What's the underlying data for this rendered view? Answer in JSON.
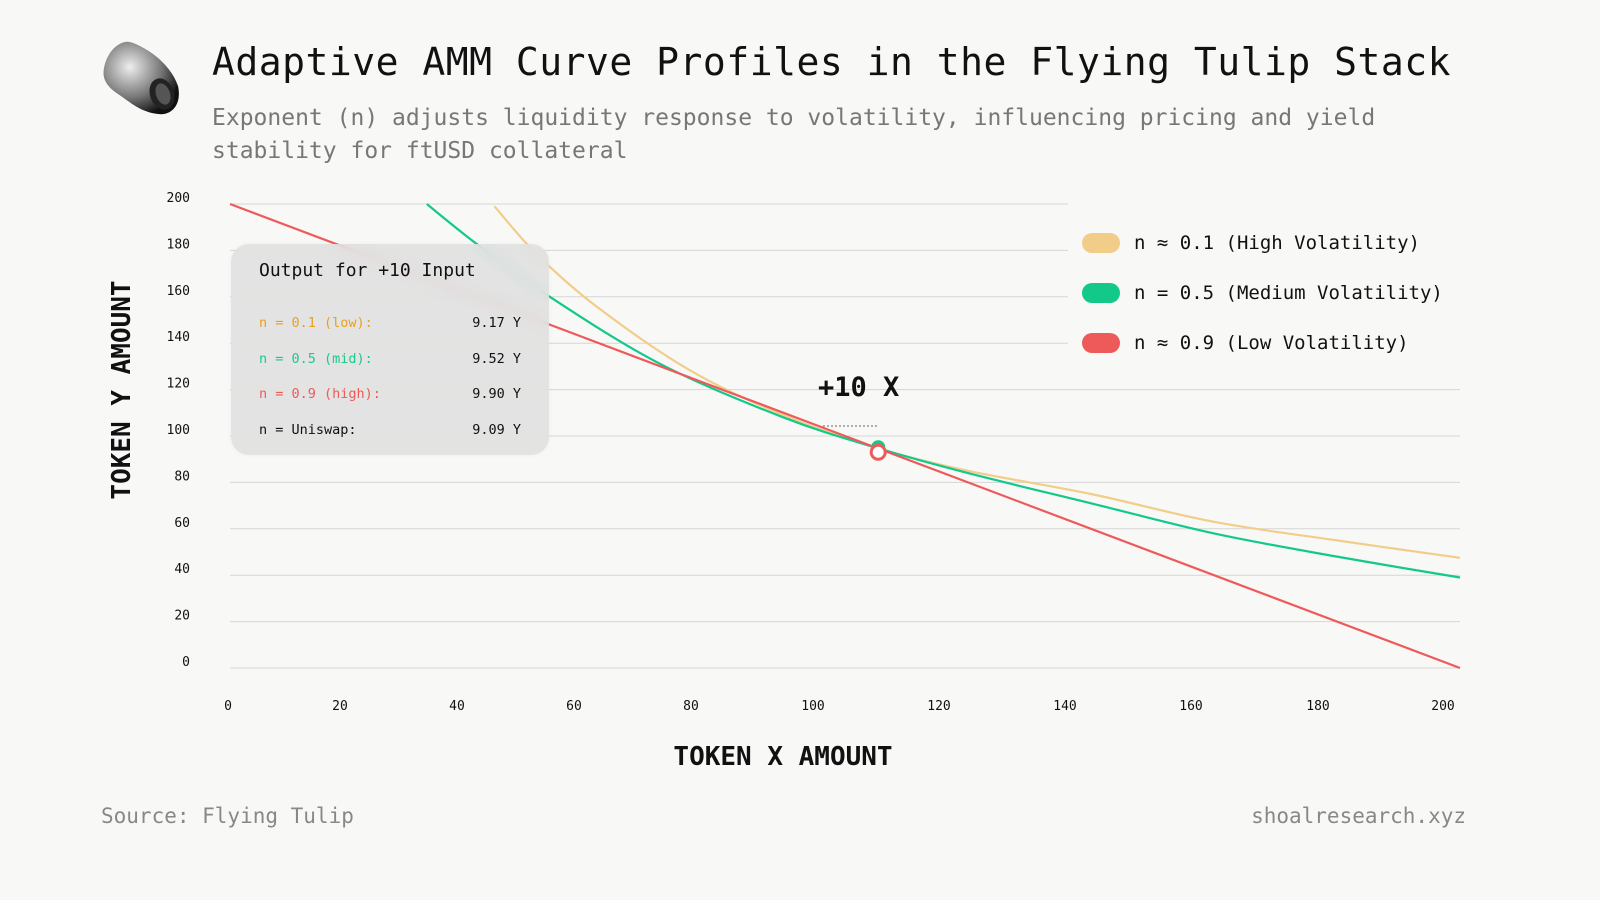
{
  "header": {
    "title": "Adaptive AMM Curve Profiles in the Flying Tulip Stack",
    "subtitle": "Exponent (n) adjusts liquidity response to volatility, influencing pricing and yield stability for ftUSD collateral"
  },
  "footer": {
    "source": "Source: Flying Tulip",
    "site": "shoalresearch.xyz"
  },
  "info_box": {
    "title": "Output for +10 Input",
    "rows": [
      {
        "label": "n = 0.1 (low):",
        "value": "9.17 Y",
        "color": "#e8a020"
      },
      {
        "label": "n = 0.5 (mid):",
        "value": "9.52 Y",
        "color": "#1cc98a"
      },
      {
        "label": "n = 0.9 (high):",
        "value": "9.90 Y",
        "color": "#ee5a5a"
      },
      {
        "label": "n = Uniswap:",
        "value": "9.09 Y",
        "color": "#111111"
      }
    ]
  },
  "chart_data": {
    "type": "line",
    "title": "Adaptive AMM Curve Profiles in the Flying Tulip Stack",
    "xlabel": "TOKEN X AMOUNT",
    "ylabel": "TOKEN Y AMOUNT",
    "xlim": [
      0,
      200
    ],
    "ylim": [
      0,
      200
    ],
    "x_ticks": [
      "0",
      "20",
      "40",
      "60",
      "80",
      "100",
      "120",
      "140",
      "160",
      "180",
      "200"
    ],
    "y_ticks": [
      "200",
      "180",
      "160",
      "140",
      "120",
      "100",
      "80",
      "60",
      "40",
      "20",
      "0"
    ],
    "grid": true,
    "legend_position": "top-right",
    "annotation": {
      "text": "+10 X",
      "x": 105.4,
      "y": 93
    },
    "series": [
      {
        "name": "n ≈ 0.1 (High Volatility)",
        "color": "#f2cd8a",
        "points": [
          [
            43,
            199
          ],
          [
            50,
            178
          ],
          [
            60,
            155
          ],
          [
            75,
            128
          ],
          [
            90,
            109
          ],
          [
            105,
            95
          ],
          [
            120,
            85
          ],
          [
            140,
            75
          ],
          [
            160,
            63
          ],
          [
            180,
            55
          ],
          [
            200,
            47.5
          ]
        ]
      },
      {
        "name": "n = 0.5 (Medium Volatility)",
        "color": "#12c98a",
        "points": [
          [
            32,
            200
          ],
          [
            40,
            183
          ],
          [
            52,
            160
          ],
          [
            70,
            131
          ],
          [
            90,
            108
          ],
          [
            105,
            95
          ],
          [
            120,
            84
          ],
          [
            140,
            71
          ],
          [
            160,
            58
          ],
          [
            180,
            48
          ],
          [
            200,
            39
          ]
        ]
      },
      {
        "name": "n ≈ 0.9 (Low Volatility)",
        "color": "#ee5a5a",
        "points": [
          [
            0,
            200
          ],
          [
            200,
            0
          ]
        ]
      }
    ]
  }
}
